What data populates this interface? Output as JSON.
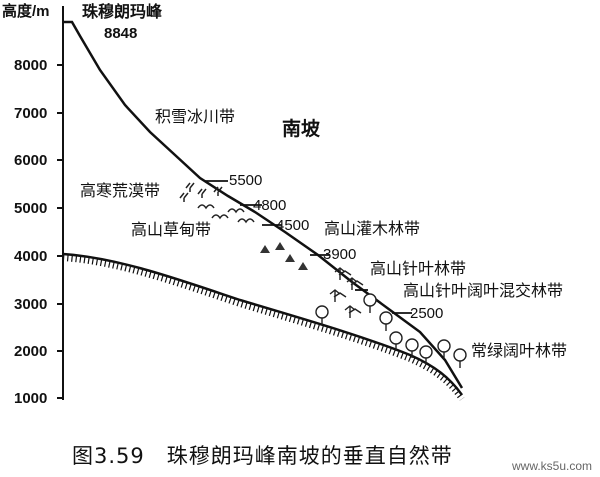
{
  "y_axis": {
    "label": "高度/m",
    "ticks": [
      "8000",
      "7000",
      "6000",
      "5000",
      "4000",
      "3000",
      "2000",
      "1000"
    ]
  },
  "peak": {
    "name": "珠穆朗玛峰",
    "height": "8848"
  },
  "slope_label": "南坡",
  "zones": [
    {
      "name": "积雪冰川带"
    },
    {
      "name": "高寒荒漠带"
    },
    {
      "name": "高山草甸带"
    },
    {
      "name": "高山灌木林带"
    },
    {
      "name": "高山针叶林带"
    },
    {
      "name": "高山针叶阔叶混交林带"
    },
    {
      "name": "常绿阔叶林带"
    }
  ],
  "boundaries": [
    "5500",
    "4800",
    "4500",
    "3900",
    "2500"
  ],
  "caption": "图3.59　珠穆朗玛峰南坡的垂直自然带",
  "watermark": "www.ks5u.com",
  "colors": {
    "ink": "#111111",
    "background": "#ffffff",
    "watermark": "#666666"
  }
}
